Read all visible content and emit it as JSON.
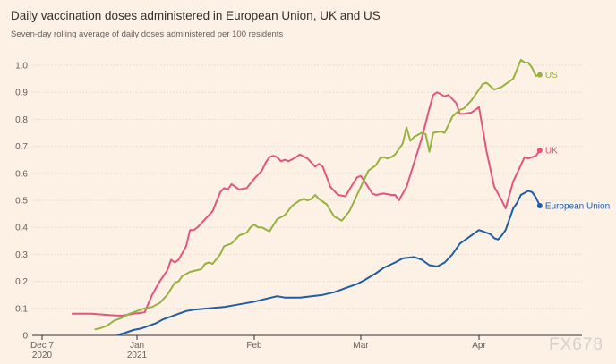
{
  "chart_data": {
    "type": "line",
    "title": "Daily vaccination doses administered in European Union, UK and US",
    "subtitle": "Seven-day rolling average of daily doses administered per 100 residents",
    "xlabel": "",
    "ylabel": "",
    "ylim": [
      0,
      1.0
    ],
    "yticks": [
      "0",
      "0.1",
      "0.2",
      "0.3",
      "0.4",
      "0.5",
      "0.6",
      "0.7",
      "0.8",
      "0.9",
      "1.0"
    ],
    "xticks": [
      {
        "date": "2020-12-07",
        "line1": "Dec 7",
        "line2": "2020"
      },
      {
        "date": "2021-01-01",
        "line1": "Jan",
        "line2": "2021"
      },
      {
        "date": "2021-02-01",
        "line1": "Feb",
        "line2": ""
      },
      {
        "date": "2021-03-01",
        "line1": "Mar",
        "line2": ""
      },
      {
        "date": "2021-04-01",
        "line1": "Apr",
        "line2": ""
      }
    ],
    "series": [
      {
        "name": "UK",
        "color": "#e3557d",
        "points": [
          [
            "2020-12-15",
            0.08
          ],
          [
            "2020-12-20",
            0.08
          ],
          [
            "2020-12-25",
            0.075
          ],
          [
            "2020-12-28",
            0.073
          ],
          [
            "2021-01-01",
            0.082
          ],
          [
            "2021-01-03",
            0.085
          ],
          [
            "2021-01-05",
            0.15
          ],
          [
            "2021-01-07",
            0.2
          ],
          [
            "2021-01-09",
            0.24
          ],
          [
            "2021-01-10",
            0.28
          ],
          [
            "2021-01-11",
            0.27
          ],
          [
            "2021-01-12",
            0.28
          ],
          [
            "2021-01-14",
            0.33
          ],
          [
            "2021-01-15",
            0.39
          ],
          [
            "2021-01-16",
            0.39
          ],
          [
            "2021-01-17",
            0.4
          ],
          [
            "2021-01-19",
            0.43
          ],
          [
            "2021-01-21",
            0.46
          ],
          [
            "2021-01-23",
            0.53
          ],
          [
            "2021-01-24",
            0.545
          ],
          [
            "2021-01-25",
            0.54
          ],
          [
            "2021-01-26",
            0.56
          ],
          [
            "2021-01-28",
            0.54
          ],
          [
            "2021-01-30",
            0.545
          ],
          [
            "2021-02-01",
            0.58
          ],
          [
            "2021-02-03",
            0.61
          ],
          [
            "2021-02-04",
            0.64
          ],
          [
            "2021-02-05",
            0.66
          ],
          [
            "2021-02-06",
            0.665
          ],
          [
            "2021-02-07",
            0.66
          ],
          [
            "2021-02-08",
            0.645
          ],
          [
            "2021-02-09",
            0.65
          ],
          [
            "2021-02-10",
            0.645
          ],
          [
            "2021-02-12",
            0.66
          ],
          [
            "2021-02-13",
            0.67
          ],
          [
            "2021-02-15",
            0.655
          ],
          [
            "2021-02-17",
            0.625
          ],
          [
            "2021-02-18",
            0.635
          ],
          [
            "2021-02-19",
            0.625
          ],
          [
            "2021-02-21",
            0.55
          ],
          [
            "2021-02-23",
            0.52
          ],
          [
            "2021-02-25",
            0.515
          ],
          [
            "2021-02-26",
            0.54
          ],
          [
            "2021-02-28",
            0.585
          ],
          [
            "2021-03-01",
            0.59
          ],
          [
            "2021-03-02",
            0.57
          ],
          [
            "2021-03-04",
            0.525
          ],
          [
            "2021-03-05",
            0.52
          ],
          [
            "2021-03-07",
            0.525
          ],
          [
            "2021-03-09",
            0.52
          ],
          [
            "2021-03-10",
            0.52
          ],
          [
            "2021-03-11",
            0.5
          ],
          [
            "2021-03-13",
            0.55
          ],
          [
            "2021-03-15",
            0.64
          ],
          [
            "2021-03-17",
            0.73
          ],
          [
            "2021-03-19",
            0.84
          ],
          [
            "2021-03-20",
            0.89
          ],
          [
            "2021-03-21",
            0.9
          ],
          [
            "2021-03-23",
            0.885
          ],
          [
            "2021-03-24",
            0.89
          ],
          [
            "2021-03-26",
            0.86
          ],
          [
            "2021-03-27",
            0.82
          ],
          [
            "2021-03-28",
            0.82
          ],
          [
            "2021-03-30",
            0.825
          ],
          [
            "2021-04-01",
            0.845
          ],
          [
            "2021-04-03",
            0.68
          ],
          [
            "2021-04-05",
            0.55
          ],
          [
            "2021-04-07",
            0.5
          ],
          [
            "2021-04-08",
            0.47
          ],
          [
            "2021-04-10",
            0.57
          ],
          [
            "2021-04-12",
            0.63
          ],
          [
            "2021-04-13",
            0.66
          ],
          [
            "2021-04-14",
            0.655
          ],
          [
            "2021-04-15",
            0.66
          ],
          [
            "2021-04-16",
            0.665
          ],
          [
            "2021-04-17",
            0.685
          ]
        ]
      },
      {
        "name": "US",
        "color": "#96b23f",
        "points": [
          [
            "2020-12-21",
            0.023
          ],
          [
            "2020-12-22",
            0.025
          ],
          [
            "2020-12-24",
            0.035
          ],
          [
            "2020-12-26",
            0.055
          ],
          [
            "2020-12-28",
            0.065
          ],
          [
            "2020-12-30",
            0.08
          ],
          [
            "2021-01-01",
            0.09
          ],
          [
            "2021-01-03",
            0.1
          ],
          [
            "2021-01-05",
            0.105
          ],
          [
            "2021-01-07",
            0.12
          ],
          [
            "2021-01-09",
            0.15
          ],
          [
            "2021-01-11",
            0.195
          ],
          [
            "2021-01-12",
            0.2
          ],
          [
            "2021-01-13",
            0.22
          ],
          [
            "2021-01-15",
            0.235
          ],
          [
            "2021-01-18",
            0.245
          ],
          [
            "2021-01-19",
            0.265
          ],
          [
            "2021-01-20",
            0.27
          ],
          [
            "2021-01-21",
            0.265
          ],
          [
            "2021-01-23",
            0.3
          ],
          [
            "2021-01-24",
            0.33
          ],
          [
            "2021-01-26",
            0.34
          ],
          [
            "2021-01-28",
            0.37
          ],
          [
            "2021-01-30",
            0.38
          ],
          [
            "2021-01-31",
            0.4
          ],
          [
            "2021-02-01",
            0.41
          ],
          [
            "2021-02-02",
            0.4
          ],
          [
            "2021-02-03",
            0.4
          ],
          [
            "2021-02-05",
            0.385
          ],
          [
            "2021-02-07",
            0.43
          ],
          [
            "2021-02-09",
            0.445
          ],
          [
            "2021-02-11",
            0.48
          ],
          [
            "2021-02-13",
            0.5
          ],
          [
            "2021-02-14",
            0.505
          ],
          [
            "2021-02-15",
            0.5
          ],
          [
            "2021-02-16",
            0.505
          ],
          [
            "2021-02-17",
            0.52
          ],
          [
            "2021-02-18",
            0.505
          ],
          [
            "2021-02-20",
            0.485
          ],
          [
            "2021-02-22",
            0.44
          ],
          [
            "2021-02-24",
            0.425
          ],
          [
            "2021-02-26",
            0.46
          ],
          [
            "2021-02-28",
            0.52
          ],
          [
            "2021-03-01",
            0.55
          ],
          [
            "2021-03-03",
            0.61
          ],
          [
            "2021-03-05",
            0.63
          ],
          [
            "2021-03-06",
            0.655
          ],
          [
            "2021-03-07",
            0.66
          ],
          [
            "2021-03-08",
            0.655
          ],
          [
            "2021-03-09",
            0.66
          ],
          [
            "2021-03-10",
            0.67
          ],
          [
            "2021-03-12",
            0.71
          ],
          [
            "2021-03-13",
            0.77
          ],
          [
            "2021-03-14",
            0.72
          ],
          [
            "2021-03-15",
            0.735
          ],
          [
            "2021-03-17",
            0.75
          ],
          [
            "2021-03-18",
            0.745
          ],
          [
            "2021-03-19",
            0.68
          ],
          [
            "2021-03-20",
            0.75
          ],
          [
            "2021-03-22",
            0.755
          ],
          [
            "2021-03-23",
            0.75
          ],
          [
            "2021-03-25",
            0.81
          ],
          [
            "2021-03-27",
            0.835
          ],
          [
            "2021-03-28",
            0.84
          ],
          [
            "2021-03-30",
            0.87
          ],
          [
            "2021-04-01",
            0.91
          ],
          [
            "2021-04-02",
            0.93
          ],
          [
            "2021-04-03",
            0.935
          ],
          [
            "2021-04-05",
            0.91
          ],
          [
            "2021-04-07",
            0.92
          ],
          [
            "2021-04-08",
            0.93
          ],
          [
            "2021-04-10",
            0.95
          ],
          [
            "2021-04-12",
            1.02
          ],
          [
            "2021-04-13",
            1.01
          ],
          [
            "2021-04-14",
            1.01
          ],
          [
            "2021-04-15",
            0.99
          ],
          [
            "2021-04-16",
            0.96
          ],
          [
            "2021-04-17",
            0.965
          ]
        ]
      },
      {
        "name": "European Union",
        "color": "#1f5ca6",
        "points": [
          [
            "2020-12-27",
            0.002
          ],
          [
            "2020-12-29",
            0.01
          ],
          [
            "2020-12-31",
            0.02
          ],
          [
            "2021-01-02",
            0.025
          ],
          [
            "2021-01-04",
            0.035
          ],
          [
            "2021-01-06",
            0.045
          ],
          [
            "2021-01-08",
            0.06
          ],
          [
            "2021-01-10",
            0.07
          ],
          [
            "2021-01-12",
            0.08
          ],
          [
            "2021-01-14",
            0.09
          ],
          [
            "2021-01-16",
            0.095
          ],
          [
            "2021-01-20",
            0.1
          ],
          [
            "2021-01-24",
            0.105
          ],
          [
            "2021-01-28",
            0.115
          ],
          [
            "2021-02-01",
            0.125
          ],
          [
            "2021-02-04",
            0.135
          ],
          [
            "2021-02-07",
            0.145
          ],
          [
            "2021-02-09",
            0.14
          ],
          [
            "2021-02-13",
            0.14
          ],
          [
            "2021-02-16",
            0.145
          ],
          [
            "2021-02-19",
            0.15
          ],
          [
            "2021-02-22",
            0.16
          ],
          [
            "2021-02-25",
            0.175
          ],
          [
            "2021-02-28",
            0.19
          ],
          [
            "2021-03-02",
            0.205
          ],
          [
            "2021-03-05",
            0.23
          ],
          [
            "2021-03-07",
            0.25
          ],
          [
            "2021-03-10",
            0.27
          ],
          [
            "2021-03-12",
            0.285
          ],
          [
            "2021-03-15",
            0.29
          ],
          [
            "2021-03-17",
            0.28
          ],
          [
            "2021-03-19",
            0.26
          ],
          [
            "2021-03-21",
            0.255
          ],
          [
            "2021-03-23",
            0.27
          ],
          [
            "2021-03-25",
            0.3
          ],
          [
            "2021-03-27",
            0.34
          ],
          [
            "2021-03-29",
            0.36
          ],
          [
            "2021-03-31",
            0.38
          ],
          [
            "2021-04-01",
            0.39
          ],
          [
            "2021-04-02",
            0.385
          ],
          [
            "2021-04-04",
            0.375
          ],
          [
            "2021-04-05",
            0.36
          ],
          [
            "2021-04-06",
            0.355
          ],
          [
            "2021-04-07",
            0.37
          ],
          [
            "2021-04-08",
            0.39
          ],
          [
            "2021-04-10",
            0.47
          ],
          [
            "2021-04-11",
            0.49
          ],
          [
            "2021-04-12",
            0.52
          ],
          [
            "2021-04-14",
            0.535
          ],
          [
            "2021-04-15",
            0.53
          ],
          [
            "2021-04-16",
            0.51
          ],
          [
            "2021-04-17",
            0.48
          ]
        ]
      }
    ]
  },
  "watermark": "FX678"
}
